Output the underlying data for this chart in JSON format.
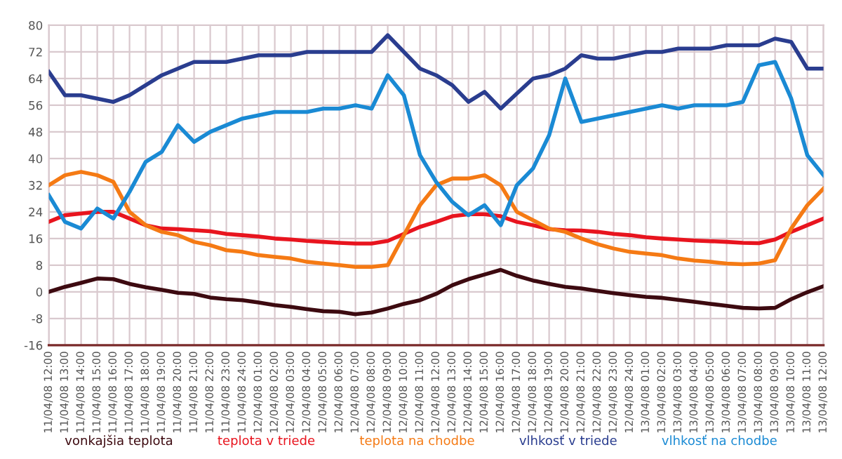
{
  "chart_data": {
    "type": "line",
    "categories": [
      "11/04/08 12:00",
      "11/04/08 13:00",
      "11/04/08 14:00",
      "11/04/08 15:00",
      "11/04/08 16:00",
      "11/04/08 17:00",
      "11/04/08 18:00",
      "11/04/08 19:00",
      "11/04/08 20:00",
      "11/04/08 21:00",
      "11/04/08 22:00",
      "11/04/08 23:00",
      "11/04/08 24:00",
      "12/04/08 01:00",
      "12/04/08 02:00",
      "12/04/08 03:00",
      "12/04/08 04:00",
      "12/04/08 05:00",
      "12/04/08 06:00",
      "12/04/08 07:00",
      "12/04/08 08:00",
      "12/04/08 09:00",
      "12/04/08 10:00",
      "12/04/08 11:00",
      "12/04/08 12:00",
      "12/04/08 13:00",
      "12/04/08 14:00",
      "12/04/08 15:00",
      "12/04/08 16:00",
      "12/04/08 17:00",
      "12/04/08 18:00",
      "12/04/08 19:00",
      "12/04/08 20:00",
      "12/04/08 21:00",
      "12/04/08 22:00",
      "12/04/08 23:00",
      "12/04/08 24:00",
      "13/04/08 01:00",
      "13/04/08 02:00",
      "13/04/08 03:00",
      "13/04/08 04:00",
      "13/04/08 05:00",
      "13/04/08 06:00",
      "13/04/08 07:00",
      "13/04/08 08:00",
      "13/04/08 09:00",
      "13/04/08 10:00",
      "13/04/08 11:00",
      "13/04/08 12:00"
    ],
    "series": [
      {
        "name": "vonkajšia teplota",
        "color": "#3d0a10",
        "values": [
          0,
          1.5,
          2.7,
          4,
          3.8,
          2.4,
          1.4,
          0.6,
          -0.3,
          -0.6,
          -1.7,
          -2.2,
          -2.5,
          -3.2,
          -4,
          -4.5,
          -5.2,
          -5.8,
          -6,
          -6.7,
          -6.2,
          -5,
          -3.6,
          -2.5,
          -0.6,
          2,
          3.8,
          5.2,
          6.6,
          4.8,
          3.4,
          2.4,
          1.5,
          1,
          0.3,
          -0.4,
          -1,
          -1.5,
          -1.8,
          -2.4,
          -3,
          -3.6,
          -4.2,
          -4.8,
          -5,
          -4.8,
          -2.2,
          -0.1,
          1.7
        ]
      },
      {
        "name": "teplota v triede",
        "color": "#e8141e",
        "values": [
          21,
          23,
          23.5,
          24,
          24,
          22,
          20,
          19,
          18.8,
          18.5,
          18.2,
          17.4,
          17,
          16.6,
          16,
          15.7,
          15.3,
          15,
          14.7,
          14.5,
          14.5,
          15.3,
          17.4,
          19.5,
          21,
          22.7,
          23.3,
          23.3,
          22.7,
          21,
          20,
          18.8,
          18.5,
          18.4,
          18,
          17.4,
          17,
          16.4,
          16,
          15.7,
          15.4,
          15.2,
          15,
          14.7,
          14.6,
          15.7,
          18,
          20,
          22
        ]
      },
      {
        "name": "teplota na chodbe",
        "color": "#f57a14",
        "values": [
          32,
          35,
          36,
          35,
          33,
          24,
          20,
          18,
          17,
          15,
          14,
          12.5,
          12,
          11,
          10.5,
          10,
          9,
          8.5,
          8,
          7.5,
          7.5,
          8,
          17,
          26,
          32,
          34,
          34,
          35,
          32,
          24,
          21.5,
          19,
          18,
          16,
          14.3,
          13,
          12,
          11.5,
          11,
          10,
          9.4,
          9,
          8.5,
          8.3,
          8.5,
          9.5,
          19,
          26,
          31
        ]
      },
      {
        "name": "vlhkosť v triede",
        "color": "#2a3d8f",
        "values": [
          66,
          59,
          59,
          58,
          57,
          59,
          62,
          65,
          67,
          69,
          69,
          69,
          70,
          71,
          71,
          71,
          72,
          72,
          72,
          72,
          72,
          77,
          72,
          67,
          65,
          62,
          57,
          60,
          55,
          59.5,
          64,
          65,
          67,
          71,
          70,
          70,
          71,
          72,
          72,
          73,
          73,
          73,
          74,
          74,
          74,
          76,
          75,
          67,
          67
        ]
      },
      {
        "name": "vlhkosť na chodbe",
        "color": "#1a8ad4",
        "values": [
          29,
          21,
          19,
          25,
          22,
          30,
          39,
          42,
          50,
          45,
          48,
          50,
          52,
          53,
          54,
          54,
          54,
          55,
          55,
          56,
          55,
          65,
          59,
          41,
          33,
          27,
          23,
          26,
          20,
          32,
          37,
          47,
          64,
          51,
          52,
          53,
          54,
          55,
          56,
          55,
          56,
          56,
          56,
          57,
          68,
          69,
          58,
          41,
          35
        ]
      }
    ],
    "ylim": [
      -16,
      80
    ],
    "yticks": [
      -16,
      -8,
      0,
      8,
      16,
      24,
      32,
      40,
      48,
      56,
      64,
      72,
      80
    ],
    "grid": true,
    "legend": "bottom",
    "marker": "none",
    "line_style": "solid"
  }
}
